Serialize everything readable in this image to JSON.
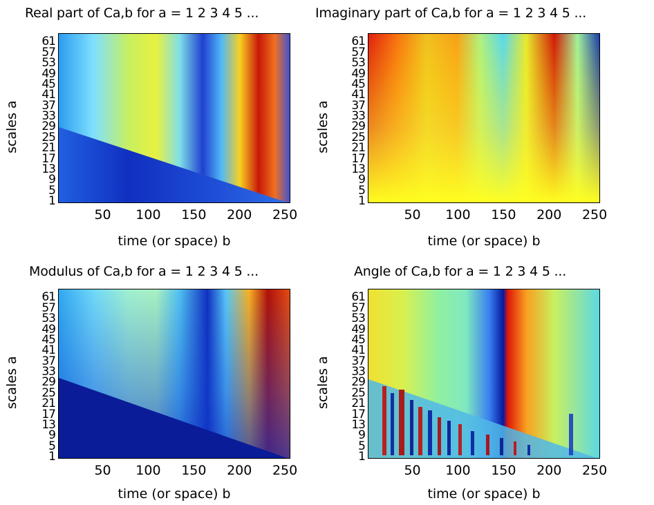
{
  "chart_data": [
    {
      "type": "heatmap",
      "title": "Real part of Ca,b for a =  1 2 3 4 5 ...",
      "xlabel": "time (or space) b",
      "ylabel": "scales a",
      "xlim": [
        1,
        256
      ],
      "ylim": [
        1,
        64
      ],
      "xticks": [
        "50",
        "100",
        "150",
        "200",
        "250"
      ],
      "yticks": [
        "1",
        "5",
        "9",
        "13",
        "17",
        "21",
        "25",
        "29",
        "33",
        "37",
        "41",
        "45",
        "49",
        "53",
        "57",
        "61"
      ],
      "colormap": "jet"
    },
    {
      "type": "heatmap",
      "title": "Imaginary part of Ca,b for a =  1 2 3 4 5 ...",
      "xlabel": "time (or space) b",
      "ylabel": "scales a",
      "xlim": [
        1,
        256
      ],
      "ylim": [
        1,
        64
      ],
      "xticks": [
        "50",
        "100",
        "150",
        "200",
        "250"
      ],
      "yticks": [
        "1",
        "5",
        "9",
        "13",
        "17",
        "21",
        "25",
        "29",
        "33",
        "37",
        "41",
        "45",
        "49",
        "53",
        "57",
        "61"
      ],
      "colormap": "jet"
    },
    {
      "type": "heatmap",
      "title": "Modulus of Ca,b for a =  1 2 3 4 5 ...",
      "xlabel": "time (or space) b",
      "ylabel": "scales a",
      "xlim": [
        1,
        256
      ],
      "ylim": [
        1,
        64
      ],
      "xticks": [
        "50",
        "100",
        "150",
        "200",
        "250"
      ],
      "yticks": [
        "1",
        "5",
        "9",
        "13",
        "17",
        "21",
        "25",
        "29",
        "33",
        "37",
        "41",
        "45",
        "49",
        "53",
        "57",
        "61"
      ],
      "colormap": "jet"
    },
    {
      "type": "heatmap",
      "title": "Angle of Ca,b for a =  1 2 3 4 5 ...",
      "xlabel": "time (or space) b",
      "ylabel": "scales a",
      "xlim": [
        1,
        256
      ],
      "ylim": [
        1,
        64
      ],
      "xticks": [
        "50",
        "100",
        "150",
        "200",
        "250"
      ],
      "yticks": [
        "1",
        "5",
        "9",
        "13",
        "17",
        "21",
        "25",
        "29",
        "33",
        "37",
        "41",
        "45",
        "49",
        "53",
        "57",
        "61"
      ],
      "colormap": "jet"
    }
  ]
}
